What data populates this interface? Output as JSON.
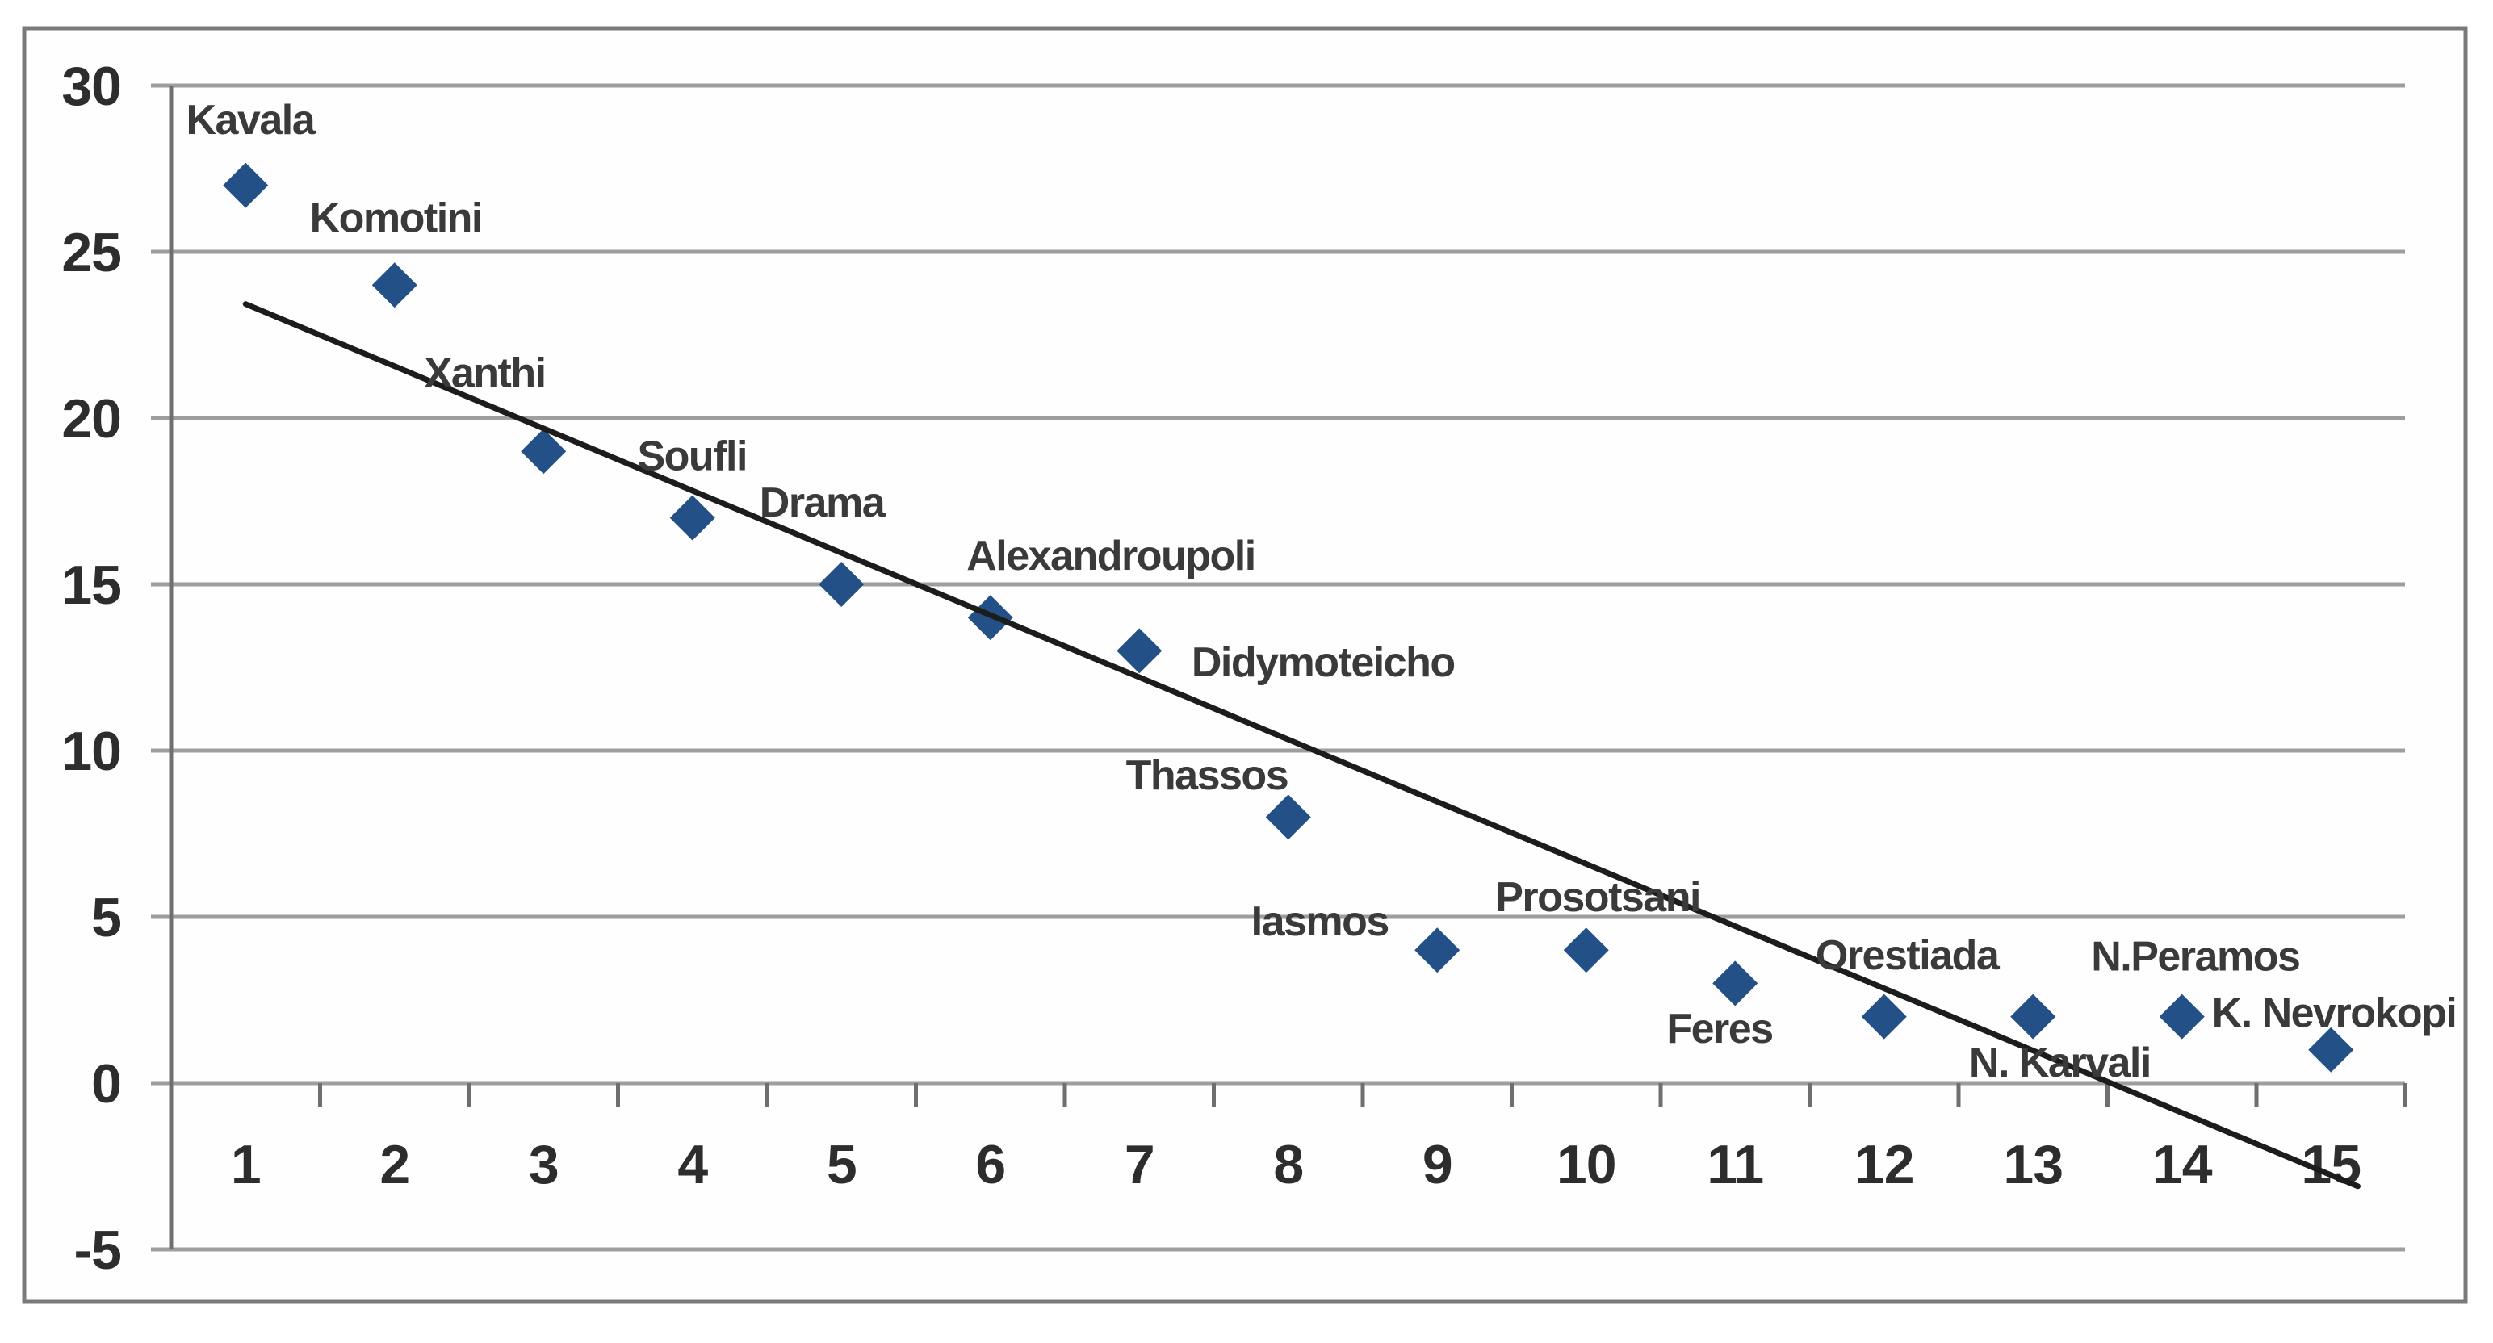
{
  "figure_title": "",
  "chart_data": {
    "type": "scatter",
    "title": "",
    "xlabel": "",
    "ylabel": "",
    "marker_shape": "diamond",
    "points": [
      {
        "rank": 1,
        "city": "Kavala",
        "value": 27,
        "label_x": 0.6,
        "label_y": 29.0
      },
      {
        "rank": 2,
        "city": "Komotini",
        "value": 24,
        "label_x": 1.43,
        "label_y": 26.05
      },
      {
        "rank": 3,
        "city": "Xanthi",
        "value": 19,
        "label_x": 2.2,
        "label_y": 21.4
      },
      {
        "rank": 4,
        "city": "Soufli",
        "value": 17,
        "label_x": 3.63,
        "label_y": 18.9
      },
      {
        "rank": 5,
        "city": "Drama",
        "value": 15,
        "label_x": 4.45,
        "label_y": 17.5
      },
      {
        "rank": 6,
        "city": "Alexandroupoli",
        "value": 14,
        "label_x": 5.84,
        "label_y": 15.9
      },
      {
        "rank": 7,
        "city": "Didymoteicho",
        "value": 13,
        "label_x": 7.35,
        "label_y": 12.7
      },
      {
        "rank": 8,
        "city": "Thassos",
        "value": 8,
        "label_x": 6.91,
        "label_y": 9.3
      },
      {
        "rank": 9,
        "city": "Iasmos",
        "value": 4,
        "label_x": 7.75,
        "label_y": 4.9
      },
      {
        "rank": 10,
        "city": "Prosotsani",
        "value": 4,
        "label_x": 9.39,
        "label_y": 5.63
      },
      {
        "rank": 11,
        "city": "Feres",
        "value": 3,
        "label_x": 10.54,
        "label_y": 1.67
      },
      {
        "rank": 12,
        "city": "Orestiada",
        "value": 2,
        "label_x": 11.54,
        "label_y": 3.88
      },
      {
        "rank": 13,
        "city": "N. Karvali",
        "value": 2,
        "label_x": 12.57,
        "label_y": 0.65
      },
      {
        "rank": 14,
        "city": "N.Peramos",
        "value": 2,
        "label_x": 13.39,
        "label_y": 3.85
      },
      {
        "rank": 15,
        "city": "K. Nevrokopi",
        "value": 1,
        "label_x": 14.2,
        "label_y": 2.15
      }
    ],
    "trendline": {
      "x_start": 1.0,
      "y_start": 23.43,
      "x_end": 15.18,
      "y_end": -3.1
    },
    "x_axis": {
      "range": [
        0.5,
        15.5
      ],
      "tick_labels": [
        "1",
        "2",
        "3",
        "4",
        "5",
        "6",
        "7",
        "8",
        "9",
        "10",
        "11",
        "12",
        "13",
        "14",
        "15"
      ]
    },
    "y_axis": {
      "range": [
        -5,
        30
      ],
      "tick_values": [
        30,
        25,
        20,
        15,
        10,
        5,
        0,
        -5
      ],
      "tick_labels": [
        "30",
        "25",
        "20",
        "15",
        "10",
        "5",
        "0",
        "-5"
      ],
      "gridlines": true
    },
    "legend": {
      "visible": false
    }
  },
  "colors": {
    "marker": "#235087",
    "trendline": "#1c1c1c",
    "gridline": "#9e9e9e",
    "axis_line": "#6f6f6f",
    "tick_text": "#2d2d2d",
    "label_text": "#3a3a3a",
    "border": "#7a7a7a",
    "background": "#ffffff"
  }
}
